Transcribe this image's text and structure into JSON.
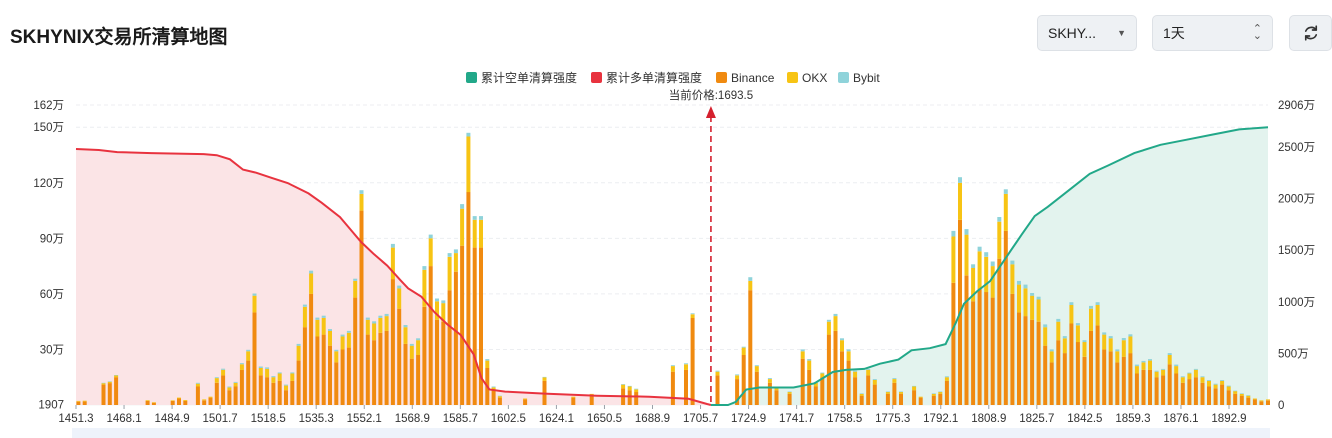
{
  "header": {
    "title": "SKHYNIX交易所清算地图",
    "symbol_select": "SKHY...",
    "period_select": "1天"
  },
  "colors": {
    "short_cum": "#22a889",
    "long_cum": "#e8333f",
    "binance": "#f08a10",
    "okx": "#f7c414",
    "bybit": "#8fd3da",
    "short_fill": "#e3f3ee",
    "long_fill": "#fbe4e6"
  },
  "chart_data": {
    "type": "bar",
    "current_price_label": "当前价格:1693.5",
    "current_price": 1693.5,
    "legend": [
      "累计空单清算强度",
      "累计多单清算强度",
      "Binance",
      "OKX",
      "Bybit"
    ],
    "legend_placement": "top-center",
    "x_ticks": [
      "1451.3",
      "1468.1",
      "1484.9",
      "1501.7",
      "1518.5",
      "1535.3",
      "1552.1",
      "1568.9",
      "1585.7",
      "1602.5",
      "1624.1",
      "1650.5",
      "1688.9",
      "1705.7",
      "1724.9",
      "1741.7",
      "1758.5",
      "1775.3",
      "1792.1",
      "1808.9",
      "1825.7",
      "1842.5",
      "1859.3",
      "1876.1",
      "1892.9"
    ],
    "left_axis": {
      "ticks": [
        "1907",
        "30万",
        "60万",
        "90万",
        "120万",
        "150万",
        "162万"
      ],
      "values": [
        1907,
        300000,
        600000,
        900000,
        1200000,
        1500000,
        1620000
      ],
      "range": [
        0,
        1620000
      ]
    },
    "right_axis": {
      "ticks": [
        "0",
        "500万",
        "1000万",
        "1500万",
        "2000万",
        "2500万",
        "2906万"
      ],
      "values": [
        0,
        5000000,
        10000000,
        15000000,
        20000000,
        25000000,
        29060000
      ],
      "range": [
        0,
        29060000
      ]
    },
    "bars": [
      {
        "p": 1452.2,
        "b": 18000,
        "o": 4000,
        "y": 0
      },
      {
        "p": 1454.6,
        "b": 19000,
        "o": 4000,
        "y": 0
      },
      {
        "p": 1461.8,
        "b": 110000,
        "o": 8000,
        "y": 2000
      },
      {
        "p": 1464.2,
        "b": 118000,
        "o": 8000,
        "y": 2000
      },
      {
        "p": 1466.6,
        "b": 150000,
        "o": 10000,
        "y": 2000
      },
      {
        "p": 1478.6,
        "b": 22000,
        "o": 4000,
        "y": 0
      },
      {
        "p": 1481.0,
        "b": 12000,
        "o": 3000,
        "y": 0
      },
      {
        "p": 1488.2,
        "b": 22000,
        "o": 3000,
        "y": 0
      },
      {
        "p": 1490.6,
        "b": 35000,
        "o": 5000,
        "y": 0
      },
      {
        "p": 1493.0,
        "b": 22000,
        "o": 5000,
        "y": 0
      },
      {
        "p": 1497.8,
        "b": 100000,
        "o": 15000,
        "y": 5000
      },
      {
        "p": 1500.2,
        "b": 25000,
        "o": 5000,
        "y": 0
      },
      {
        "p": 1502.6,
        "b": 40000,
        "o": 5000,
        "y": 0
      },
      {
        "p": 1505.0,
        "b": 120000,
        "o": 25000,
        "y": 5000
      },
      {
        "p": 1507.4,
        "b": 160000,
        "o": 30000,
        "y": 6000
      },
      {
        "p": 1509.8,
        "b": 80000,
        "o": 15000,
        "y": 5000
      },
      {
        "p": 1512.2,
        "b": 100000,
        "o": 20000,
        "y": 5000
      },
      {
        "p": 1514.6,
        "b": 190000,
        "o": 30000,
        "y": 6000
      },
      {
        "p": 1517.0,
        "b": 240000,
        "o": 50000,
        "y": 8000
      },
      {
        "p": 1519.4,
        "b": 500000,
        "o": 90000,
        "y": 12000
      },
      {
        "p": 1521.8,
        "b": 160000,
        "o": 40000,
        "y": 8000
      },
      {
        "p": 1524.2,
        "b": 150000,
        "o": 45000,
        "y": 8000
      },
      {
        "p": 1526.6,
        "b": 120000,
        "o": 30000,
        "y": 6000
      },
      {
        "p": 1529.0,
        "b": 130000,
        "o": 40000,
        "y": 6000
      },
      {
        "p": 1531.4,
        "b": 80000,
        "o": 25000,
        "y": 5000
      },
      {
        "p": 1533.8,
        "b": 130000,
        "o": 40000,
        "y": 6000
      },
      {
        "p": 1536.2,
        "b": 240000,
        "o": 80000,
        "y": 10000
      },
      {
        "p": 1538.6,
        "b": 420000,
        "o": 110000,
        "y": 12000
      },
      {
        "p": 1541.0,
        "b": 600000,
        "o": 110000,
        "y": 15000
      },
      {
        "p": 1543.4,
        "b": 370000,
        "o": 90000,
        "y": 12000
      },
      {
        "p": 1545.8,
        "b": 380000,
        "o": 90000,
        "y": 12000
      },
      {
        "p": 1548.2,
        "b": 320000,
        "o": 80000,
        "y": 10000
      },
      {
        "p": 1550.6,
        "b": 230000,
        "o": 60000,
        "y": 8000
      },
      {
        "p": 1553.0,
        "b": 300000,
        "o": 70000,
        "y": 10000
      },
      {
        "p": 1555.4,
        "b": 310000,
        "o": 80000,
        "y": 10000
      },
      {
        "p": 1557.8,
        "b": 580000,
        "o": 90000,
        "y": 12000
      },
      {
        "p": 1560.2,
        "b": 1050000,
        "o": 90000,
        "y": 20000
      },
      {
        "p": 1562.6,
        "b": 380000,
        "o": 80000,
        "y": 12000
      },
      {
        "p": 1565.0,
        "b": 350000,
        "o": 90000,
        "y": 12000
      },
      {
        "p": 1567.4,
        "b": 390000,
        "o": 80000,
        "y": 12000
      },
      {
        "p": 1569.8,
        "b": 400000,
        "o": 80000,
        "y": 12000
      },
      {
        "p": 1572.2,
        "b": 680000,
        "o": 170000,
        "y": 20000
      },
      {
        "p": 1574.6,
        "b": 520000,
        "o": 110000,
        "y": 15000
      },
      {
        "p": 1577.0,
        "b": 330000,
        "o": 90000,
        "y": 12000
      },
      {
        "p": 1579.4,
        "b": 250000,
        "o": 70000,
        "y": 10000
      },
      {
        "p": 1581.8,
        "b": 270000,
        "o": 80000,
        "y": 10000
      },
      {
        "p": 1584.2,
        "b": 530000,
        "o": 200000,
        "y": 20000
      },
      {
        "p": 1586.6,
        "b": 750000,
        "o": 150000,
        "y": 20000
      },
      {
        "p": 1589.0,
        "b": 460000,
        "o": 100000,
        "y": 15000
      },
      {
        "p": 1591.4,
        "b": 450000,
        "o": 100000,
        "y": 15000
      },
      {
        "p": 1593.8,
        "b": 620000,
        "o": 180000,
        "y": 20000
      },
      {
        "p": 1596.2,
        "b": 720000,
        "o": 100000,
        "y": 20000
      },
      {
        "p": 1598.6,
        "b": 860000,
        "o": 200000,
        "y": 25000
      },
      {
        "p": 1601.0,
        "b": 1150000,
        "o": 300000,
        "y": 20000
      },
      {
        "p": 1603.4,
        "b": 850000,
        "o": 150000,
        "y": 20000
      },
      {
        "p": 1605.8,
        "b": 850000,
        "o": 150000,
        "y": 20000
      },
      {
        "p": 1608.2,
        "b": 200000,
        "o": 40000,
        "y": 8000
      },
      {
        "p": 1610.6,
        "b": 80000,
        "o": 15000,
        "y": 5000
      },
      {
        "p": 1613.0,
        "b": 40000,
        "o": 8000,
        "y": 2000
      },
      {
        "p": 1622.6,
        "b": 30000,
        "o": 5000,
        "y": 0
      },
      {
        "p": 1630.0,
        "b": 130000,
        "o": 20000,
        "y": 2000
      },
      {
        "p": 1641.0,
        "b": 40000,
        "o": 5000,
        "y": 0
      },
      {
        "p": 1648.0,
        "b": 50000,
        "o": 10000,
        "y": 0
      },
      {
        "p": 1660.0,
        "b": 90000,
        "o": 20000,
        "y": 3000
      },
      {
        "p": 1662.5,
        "b": 80000,
        "o": 20000,
        "y": 3000
      },
      {
        "p": 1665.0,
        "b": 70000,
        "o": 15000,
        "y": 3000
      },
      {
        "p": 1679.0,
        "b": 180000,
        "o": 30000,
        "y": 5000
      },
      {
        "p": 1684.0,
        "b": 190000,
        "o": 30000,
        "y": 5000
      },
      {
        "p": 1686.5,
        "b": 470000,
        "o": 20000,
        "y": 5000
      },
      {
        "p": 1696.0,
        "b": 160000,
        "o": 20000,
        "y": 5000
      },
      {
        "p": 1703.5,
        "b": 140000,
        "o": 20000,
        "y": 5000
      },
      {
        "p": 1706.0,
        "b": 270000,
        "o": 40000,
        "y": 5000
      },
      {
        "p": 1708.5,
        "b": 620000,
        "o": 50000,
        "y": 20000
      },
      {
        "p": 1711.0,
        "b": 180000,
        "o": 30000,
        "y": 5000
      },
      {
        "p": 1716.0,
        "b": 120000,
        "o": 20000,
        "y": 5000
      },
      {
        "p": 1718.5,
        "b": 80000,
        "o": 15000,
        "y": 5000
      },
      {
        "p": 1723.5,
        "b": 60000,
        "o": 10000,
        "y": 3000
      },
      {
        "p": 1728.5,
        "b": 250000,
        "o": 40000,
        "y": 10000
      },
      {
        "p": 1731.0,
        "b": 190000,
        "o": 50000,
        "y": 8000
      },
      {
        "p": 1733.5,
        "b": 100000,
        "o": 20000,
        "y": 5000
      },
      {
        "p": 1736.0,
        "b": 150000,
        "o": 20000,
        "y": 5000
      },
      {
        "p": 1738.5,
        "b": 380000,
        "o": 70000,
        "y": 10000
      },
      {
        "p": 1741.0,
        "b": 400000,
        "o": 80000,
        "y": 12000
      },
      {
        "p": 1743.5,
        "b": 290000,
        "o": 60000,
        "y": 10000
      },
      {
        "p": 1746.0,
        "b": 240000,
        "o": 50000,
        "y": 10000
      },
      {
        "p": 1748.5,
        "b": 150000,
        "o": 30000,
        "y": 5000
      },
      {
        "p": 1751.0,
        "b": 50000,
        "o": 10000,
        "y": 3000
      },
      {
        "p": 1753.5,
        "b": 160000,
        "o": 30000,
        "y": 5000
      },
      {
        "p": 1756.0,
        "b": 110000,
        "o": 25000,
        "y": 5000
      },
      {
        "p": 1761.0,
        "b": 60000,
        "o": 10000,
        "y": 3000
      },
      {
        "p": 1763.5,
        "b": 120000,
        "o": 20000,
        "y": 5000
      },
      {
        "p": 1766.0,
        "b": 60000,
        "o": 10000,
        "y": 3000
      },
      {
        "p": 1771.0,
        "b": 80000,
        "o": 20000,
        "y": 3000
      },
      {
        "p": 1773.5,
        "b": 40000,
        "o": 5000,
        "y": 0
      },
      {
        "p": 1778.5,
        "b": 50000,
        "o": 10000,
        "y": 3000
      },
      {
        "p": 1781.0,
        "b": 60000,
        "o": 10000,
        "y": 3000
      },
      {
        "p": 1783.5,
        "b": 130000,
        "o": 20000,
        "y": 5000
      },
      {
        "p": 1786.0,
        "b": 660000,
        "o": 250000,
        "y": 30000
      },
      {
        "p": 1788.5,
        "b": 1000000,
        "o": 200000,
        "y": 30000
      },
      {
        "p": 1791.0,
        "b": 700000,
        "o": 220000,
        "y": 30000
      },
      {
        "p": 1793.5,
        "b": 560000,
        "o": 180000,
        "y": 20000
      },
      {
        "p": 1796.0,
        "b": 630000,
        "o": 200000,
        "y": 25000
      },
      {
        "p": 1798.5,
        "b": 610000,
        "o": 190000,
        "y": 25000
      },
      {
        "p": 1801.0,
        "b": 580000,
        "o": 170000,
        "y": 25000
      },
      {
        "p": 1803.5,
        "b": 790000,
        "o": 200000,
        "y": 25000
      },
      {
        "p": 1806.0,
        "b": 940000,
        "o": 200000,
        "y": 25000
      },
      {
        "p": 1808.5,
        "b": 600000,
        "o": 160000,
        "y": 20000
      },
      {
        "p": 1811.0,
        "b": 500000,
        "o": 150000,
        "y": 20000
      },
      {
        "p": 1813.5,
        "b": 480000,
        "o": 150000,
        "y": 20000
      },
      {
        "p": 1816.0,
        "b": 460000,
        "o": 130000,
        "y": 15000
      },
      {
        "p": 1818.5,
        "b": 450000,
        "o": 120000,
        "y": 15000
      },
      {
        "p": 1821.0,
        "b": 320000,
        "o": 100000,
        "y": 15000
      },
      {
        "p": 1823.5,
        "b": 230000,
        "o": 60000,
        "y": 10000
      },
      {
        "p": 1826.0,
        "b": 350000,
        "o": 100000,
        "y": 15000
      },
      {
        "p": 1828.5,
        "b": 280000,
        "o": 80000,
        "y": 12000
      },
      {
        "p": 1831.0,
        "b": 440000,
        "o": 100000,
        "y": 15000
      },
      {
        "p": 1833.5,
        "b": 340000,
        "o": 90000,
        "y": 12000
      },
      {
        "p": 1836.0,
        "b": 260000,
        "o": 80000,
        "y": 10000
      },
      {
        "p": 1838.5,
        "b": 400000,
        "o": 120000,
        "y": 15000
      },
      {
        "p": 1841.0,
        "b": 430000,
        "o": 110000,
        "y": 15000
      },
      {
        "p": 1843.5,
        "b": 300000,
        "o": 80000,
        "y": 12000
      },
      {
        "p": 1846.0,
        "b": 290000,
        "o": 70000,
        "y": 12000
      },
      {
        "p": 1848.5,
        "b": 230000,
        "o": 60000,
        "y": 10000
      },
      {
        "p": 1851.0,
        "b": 260000,
        "o": 90000,
        "y": 12000
      },
      {
        "p": 1853.5,
        "b": 280000,
        "o": 90000,
        "y": 12000
      },
      {
        "p": 1856.0,
        "b": 170000,
        "o": 40000,
        "y": 8000
      },
      {
        "p": 1858.5,
        "b": 190000,
        "o": 40000,
        "y": 8000
      },
      {
        "p": 1861.0,
        "b": 190000,
        "o": 50000,
        "y": 8000
      },
      {
        "p": 1863.5,
        "b": 150000,
        "o": 30000,
        "y": 5000
      },
      {
        "p": 1866.0,
        "b": 160000,
        "o": 30000,
        "y": 5000
      },
      {
        "p": 1868.5,
        "b": 220000,
        "o": 50000,
        "y": 10000
      },
      {
        "p": 1871.0,
        "b": 170000,
        "o": 40000,
        "y": 8000
      },
      {
        "p": 1873.5,
        "b": 120000,
        "o": 30000,
        "y": 5000
      },
      {
        "p": 1876.0,
        "b": 140000,
        "o": 30000,
        "y": 5000
      },
      {
        "p": 1878.5,
        "b": 150000,
        "o": 40000,
        "y": 5000
      },
      {
        "p": 1881.0,
        "b": 120000,
        "o": 30000,
        "y": 5000
      },
      {
        "p": 1883.5,
        "b": 100000,
        "o": 30000,
        "y": 5000
      },
      {
        "p": 1886.0,
        "b": 90000,
        "o": 20000,
        "y": 5000
      },
      {
        "p": 1888.5,
        "b": 110000,
        "o": 20000,
        "y": 5000
      },
      {
        "p": 1891.0,
        "b": 80000,
        "o": 20000,
        "y": 5000
      },
      {
        "p": 1893.5,
        "b": 60000,
        "o": 15000,
        "y": 3000
      },
      {
        "p": 1896.0,
        "b": 50000,
        "o": 10000,
        "y": 3000
      },
      {
        "p": 1898.5,
        "b": 40000,
        "o": 10000,
        "y": 3000
      },
      {
        "p": 1901.0,
        "b": 30000,
        "o": 5000,
        "y": 0
      },
      {
        "p": 1903.5,
        "b": 20000,
        "o": 5000,
        "y": 0
      },
      {
        "p": 1906.0,
        "b": 25000,
        "o": 5000,
        "y": 0
      }
    ],
    "long_cumulative": [
      [
        1451.3,
        24800000
      ],
      [
        1460,
        24700000
      ],
      [
        1467,
        24500000
      ],
      [
        1480,
        24400000
      ],
      [
        1500,
        24300000
      ],
      [
        1505,
        24200000
      ],
      [
        1510,
        23800000
      ],
      [
        1515,
        22800000
      ],
      [
        1520,
        22500000
      ],
      [
        1526,
        22000000
      ],
      [
        1532,
        21500000
      ],
      [
        1540,
        20500000
      ],
      [
        1545,
        19600000
      ],
      [
        1552,
        18200000
      ],
      [
        1556,
        17000000
      ],
      [
        1560,
        15800000
      ],
      [
        1565,
        14600000
      ],
      [
        1570,
        13500000
      ],
      [
        1575,
        12100000
      ],
      [
        1578,
        11300000
      ],
      [
        1583,
        10500000
      ],
      [
        1588,
        9000000
      ],
      [
        1593,
        7800000
      ],
      [
        1598,
        6800000
      ],
      [
        1603,
        4900000
      ],
      [
        1606,
        2600000
      ],
      [
        1609,
        1500000
      ],
      [
        1615,
        1300000
      ],
      [
        1630,
        1100000
      ],
      [
        1650,
        900000
      ],
      [
        1670,
        800000
      ],
      [
        1685,
        600000
      ],
      [
        1692,
        100000
      ],
      [
        1693.5,
        0
      ]
    ],
    "short_cumulative": [
      [
        1693.5,
        0
      ],
      [
        1700,
        0
      ],
      [
        1703,
        300000
      ],
      [
        1707,
        1500000
      ],
      [
        1712,
        1700000
      ],
      [
        1725,
        1700000
      ],
      [
        1733,
        2100000
      ],
      [
        1740,
        3200000
      ],
      [
        1745,
        3400000
      ],
      [
        1752,
        3500000
      ],
      [
        1758,
        4000000
      ],
      [
        1765,
        4400000
      ],
      [
        1770,
        5300000
      ],
      [
        1777,
        5500000
      ],
      [
        1783,
        5900000
      ],
      [
        1787,
        8000000
      ],
      [
        1790,
        9800000
      ],
      [
        1795,
        11000000
      ],
      [
        1800,
        12000000
      ],
      [
        1804,
        13500000
      ],
      [
        1808,
        15000000
      ],
      [
        1812,
        16500000
      ],
      [
        1817,
        18300000
      ],
      [
        1822,
        19200000
      ],
      [
        1830,
        20800000
      ],
      [
        1838,
        22400000
      ],
      [
        1845,
        23200000
      ],
      [
        1855,
        24400000
      ],
      [
        1865,
        25200000
      ],
      [
        1875,
        25700000
      ],
      [
        1885,
        26200000
      ],
      [
        1895,
        26700000
      ],
      [
        1906,
        26900000
      ]
    ]
  }
}
